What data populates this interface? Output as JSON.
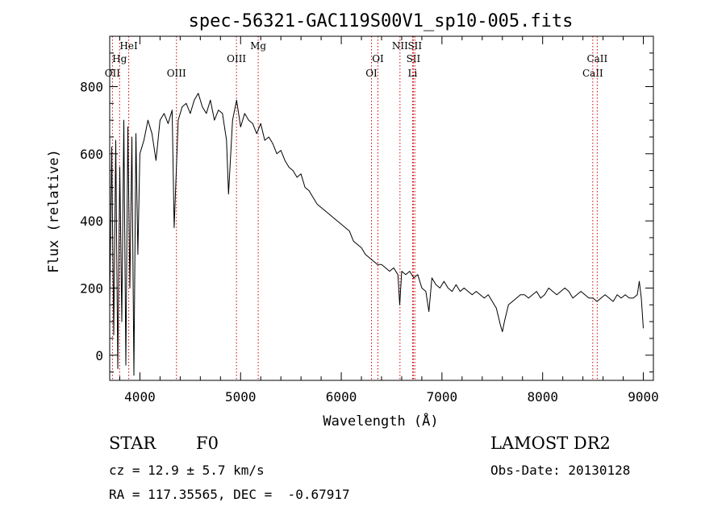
{
  "chart_data": {
    "type": "line",
    "title": "spec-56321-GAC119S00V1_sp10-005.fits",
    "xlabel": "Wavelength (Å)",
    "ylabel": "Flux (relative)",
    "xlim": [
      3700,
      9100
    ],
    "ylim": [
      -75,
      950
    ],
    "xticks": [
      4000,
      5000,
      6000,
      7000,
      8000,
      9000
    ],
    "yticks": [
      0,
      200,
      400,
      600,
      800
    ],
    "grid": false,
    "legend": "none",
    "series": [
      {
        "color": "#000000",
        "x": [
          3700,
          3720,
          3740,
          3760,
          3780,
          3800,
          3820,
          3840,
          3860,
          3880,
          3900,
          3920,
          3940,
          3960,
          3980,
          4000,
          4040,
          4080,
          4120,
          4160,
          4200,
          4240,
          4280,
          4320,
          4340,
          4380,
          4420,
          4460,
          4500,
          4540,
          4580,
          4620,
          4660,
          4700,
          4740,
          4780,
          4820,
          4860,
          4880,
          4920,
          4960,
          5000,
          5040,
          5080,
          5120,
          5160,
          5200,
          5240,
          5280,
          5320,
          5360,
          5400,
          5440,
          5480,
          5520,
          5560,
          5600,
          5640,
          5680,
          5720,
          5760,
          5800,
          5840,
          5880,
          5920,
          5960,
          6000,
          6040,
          6080,
          6120,
          6160,
          6200,
          6240,
          6280,
          6320,
          6360,
          6400,
          6440,
          6480,
          6520,
          6563,
          6580,
          6600,
          6640,
          6680,
          6720,
          6760,
          6800,
          6840,
          6870,
          6900,
          6940,
          6980,
          7020,
          7060,
          7100,
          7140,
          7180,
          7220,
          7260,
          7300,
          7340,
          7380,
          7420,
          7460,
          7500,
          7540,
          7580,
          7600,
          7620,
          7660,
          7700,
          7740,
          7780,
          7820,
          7860,
          7900,
          7940,
          7980,
          8020,
          8060,
          8100,
          8140,
          8180,
          8220,
          8260,
          8300,
          8340,
          8380,
          8420,
          8460,
          8500,
          8540,
          8580,
          8620,
          8660,
          8700,
          8740,
          8780,
          8820,
          8860,
          8900,
          8940,
          8960,
          8980,
          9000
        ],
        "values": [
          150,
          620,
          60,
          640,
          -40,
          560,
          100,
          700,
          -30,
          680,
          200,
          650,
          -60,
          660,
          300,
          600,
          640,
          700,
          660,
          580,
          700,
          720,
          690,
          730,
          380,
          700,
          740,
          750,
          720,
          760,
          780,
          740,
          720,
          760,
          700,
          730,
          720,
          640,
          480,
          700,
          760,
          680,
          720,
          700,
          690,
          660,
          690,
          640,
          650,
          630,
          600,
          610,
          580,
          560,
          550,
          530,
          540,
          500,
          490,
          470,
          450,
          440,
          430,
          420,
          410,
          400,
          390,
          380,
          370,
          340,
          330,
          320,
          300,
          290,
          280,
          270,
          270,
          260,
          250,
          260,
          240,
          150,
          250,
          240,
          250,
          230,
          240,
          200,
          190,
          130,
          230,
          210,
          200,
          220,
          200,
          190,
          210,
          190,
          200,
          190,
          180,
          190,
          180,
          170,
          180,
          160,
          140,
          90,
          70,
          100,
          150,
          160,
          170,
          180,
          180,
          170,
          180,
          190,
          170,
          180,
          200,
          190,
          180,
          190,
          200,
          190,
          170,
          180,
          190,
          180,
          170,
          170,
          160,
          170,
          180,
          170,
          160,
          180,
          170,
          180,
          170,
          170,
          180,
          220,
          170,
          80
        ]
      }
    ],
    "lines": [
      {
        "label": "OII",
        "x": 3727,
        "row": 3
      },
      {
        "label": "Hg",
        "x": 3798,
        "row": 2
      },
      {
        "label": "HeI",
        "x": 3889,
        "row": 1
      },
      {
        "label": "OIII",
        "x": 4363,
        "row": 3
      },
      {
        "label": "OIII",
        "x": 4959,
        "row": 2
      },
      {
        "label": "Mg",
        "x": 5175,
        "row": 1
      },
      {
        "label": "OI",
        "x": 6300,
        "row": 3
      },
      {
        "label": "OI",
        "x": 6364,
        "row": 2
      },
      {
        "label": "NII",
        "x": 6583,
        "row": 1
      },
      {
        "label": "SII",
        "x": 6716,
        "row": 2
      },
      {
        "label": "Li",
        "x": 6708,
        "row": 3
      },
      {
        "label": "SII",
        "x": 6731,
        "row": 1
      },
      {
        "label": "CaII",
        "x": 8498,
        "row": 3
      },
      {
        "label": "CaII",
        "x": 8542,
        "row": 2
      }
    ],
    "line_color": "#cc0000"
  },
  "info": {
    "class_label": "STAR",
    "subclass": "F0",
    "survey": "LAMOST DR2",
    "redshift": "cz = 12.9 ± 5.7 km/s",
    "obs_date": "Obs-Date: 20130128",
    "coords": "RA = 117.35565, DEC =  -0.67917"
  }
}
